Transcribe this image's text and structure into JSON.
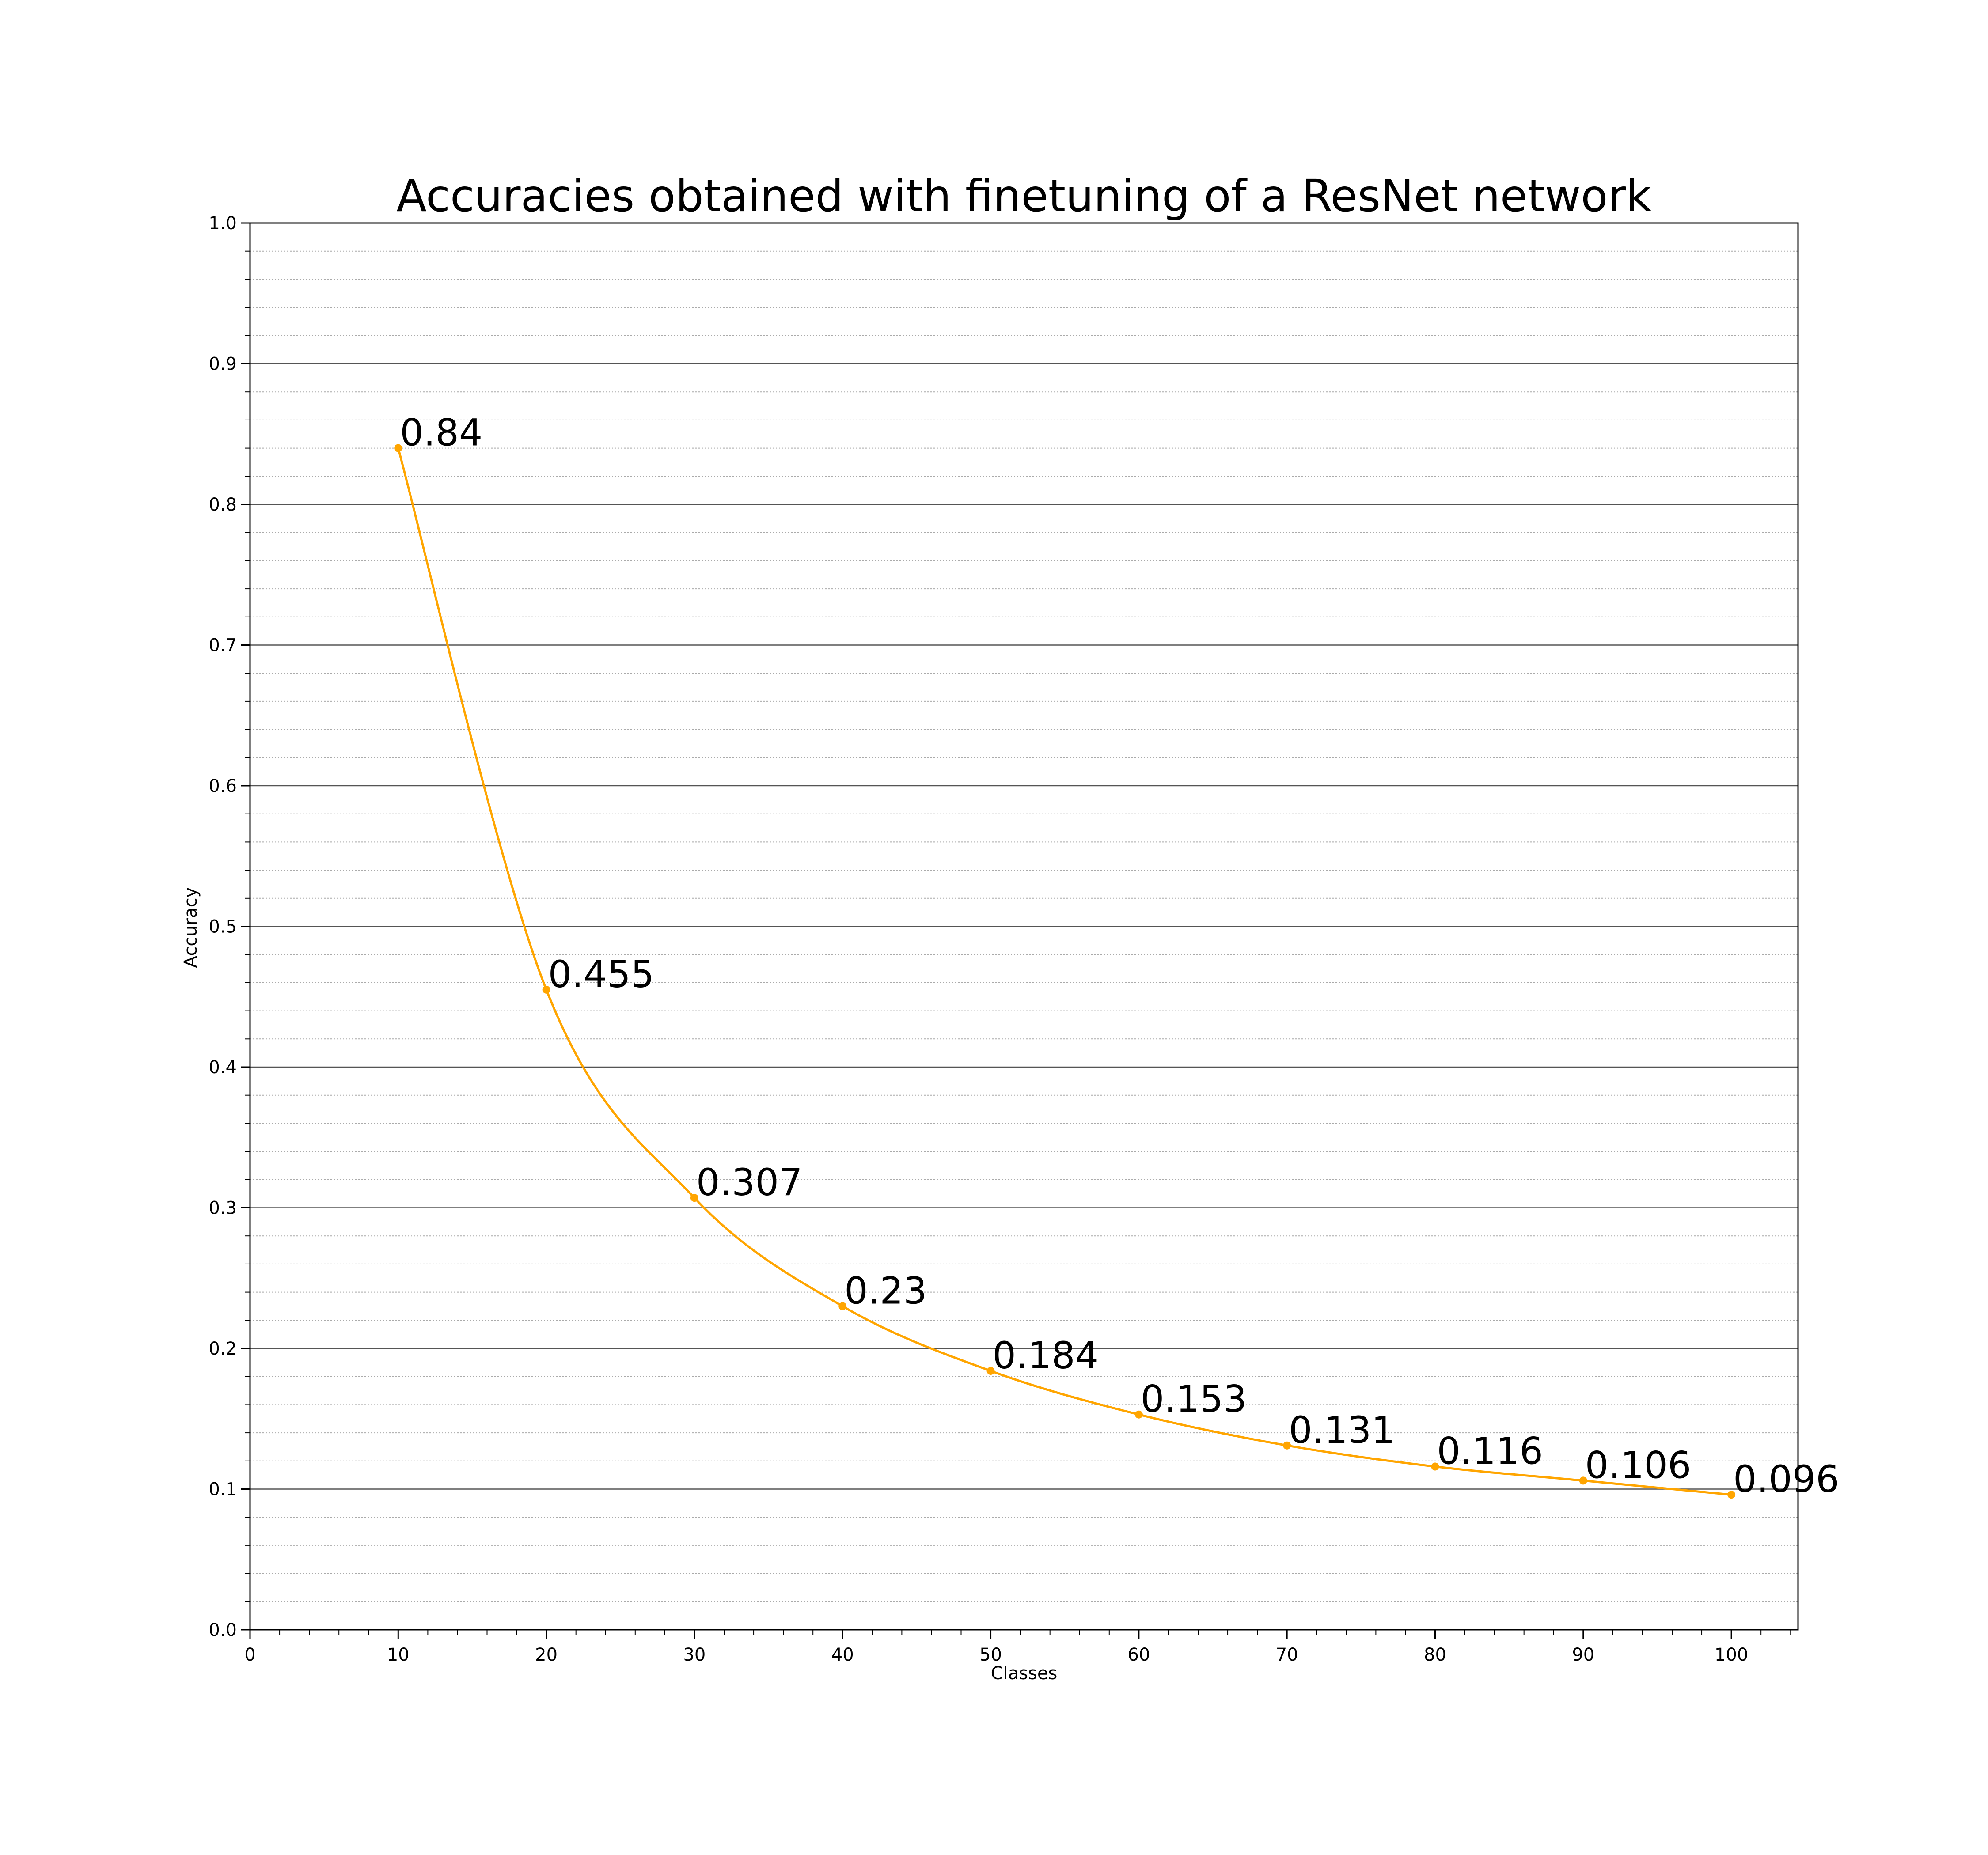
{
  "chart_data": {
    "type": "line",
    "title": "Accuracies obtained with finetuning of a ResNet network",
    "xlabel": "Classes",
    "ylabel": "Accuracy",
    "xlim": [
      0,
      104.5
    ],
    "ylim": [
      0,
      1.0
    ],
    "x_ticks": [
      0,
      10,
      20,
      30,
      40,
      50,
      60,
      70,
      80,
      90,
      100
    ],
    "x_tick_labels": [
      "0",
      "10",
      "20",
      "30",
      "40",
      "50",
      "60",
      "70",
      "80",
      "90",
      "100"
    ],
    "y_ticks": [
      0,
      0.1,
      0.2,
      0.3,
      0.4,
      0.5,
      0.6,
      0.7,
      0.8,
      0.9,
      1.0
    ],
    "y_tick_labels": [
      "0.0",
      "0.1",
      "0.2",
      "0.3",
      "0.4",
      "0.5",
      "0.6",
      "0.7",
      "0.8",
      "0.9",
      "1.0"
    ],
    "x_minor_step": 2,
    "y_minor_step": 0.02,
    "grid": {
      "major_y": true,
      "minor_y": true,
      "major_x": false
    },
    "series": [
      {
        "color": "#ffa500",
        "x": [
          10,
          20,
          30,
          40,
          50,
          60,
          70,
          80,
          90,
          100
        ],
        "y": [
          0.84,
          0.455,
          0.307,
          0.23,
          0.184,
          0.153,
          0.131,
          0.116,
          0.106,
          0.096
        ],
        "labels": [
          "0.84",
          "0.455",
          "0.307",
          "0.23",
          "0.184",
          "0.153",
          "0.131",
          "0.116",
          "0.106",
          "0.096"
        ]
      }
    ],
    "legend": "none"
  },
  "colors": {
    "series": "#ffa500",
    "axis": "#000000",
    "major_grid": "#555555",
    "minor_grid": "#aaaaaa",
    "background": "#ffffff"
  }
}
